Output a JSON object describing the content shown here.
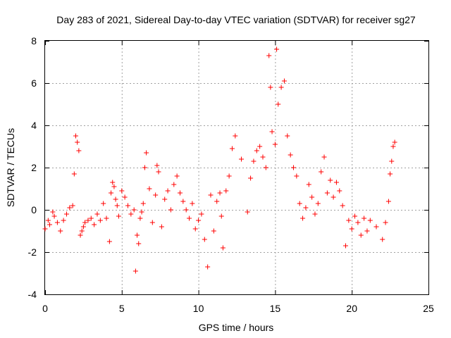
{
  "chart_data": {
    "type": "scatter",
    "title": "Day 283 of 2021, Sidereal Day-to-day VTEC variation (SDTVAR) for receiver sg27",
    "xlabel": "GPS time / hours",
    "ylabel": "SDTVAR / TECUs",
    "xlim": [
      0,
      25
    ],
    "ylim": [
      -4,
      8
    ],
    "xticks": [
      0,
      5,
      10,
      15,
      20,
      25
    ],
    "yticks": [
      -4,
      -2,
      0,
      2,
      4,
      6,
      8
    ],
    "xtick_labels": [
      "0",
      "5",
      "10",
      "15",
      "20",
      "25"
    ],
    "ytick_labels": [
      "-4",
      "-2",
      "0",
      "2",
      "4",
      "6",
      "8"
    ],
    "grid": true,
    "marker": "+",
    "series": [
      {
        "name": "SDTVAR",
        "color": "#ff0000",
        "x": [
          0.0,
          0.2,
          0.3,
          0.5,
          0.6,
          0.8,
          1.0,
          1.2,
          1.4,
          1.6,
          1.8,
          1.9,
          2.0,
          2.1,
          2.2,
          2.3,
          2.4,
          2.5,
          2.6,
          2.8,
          3.0,
          3.2,
          3.4,
          3.6,
          3.8,
          4.0,
          4.2,
          4.3,
          4.4,
          4.5,
          4.6,
          4.7,
          4.8,
          5.0,
          5.2,
          5.4,
          5.6,
          5.8,
          5.9,
          6.0,
          6.1,
          6.2,
          6.3,
          6.4,
          6.5,
          6.6,
          6.8,
          7.0,
          7.2,
          7.3,
          7.4,
          7.6,
          7.8,
          8.0,
          8.2,
          8.4,
          8.6,
          8.8,
          9.0,
          9.2,
          9.4,
          9.6,
          9.8,
          10.0,
          10.2,
          10.4,
          10.6,
          10.8,
          11.0,
          11.2,
          11.4,
          11.5,
          11.6,
          11.8,
          12.0,
          12.2,
          12.4,
          12.8,
          13.2,
          13.4,
          13.6,
          13.8,
          14.0,
          14.2,
          14.4,
          14.6,
          14.7,
          14.8,
          15.0,
          15.1,
          15.2,
          15.4,
          15.6,
          15.8,
          16.0,
          16.2,
          16.4,
          16.6,
          16.8,
          17.0,
          17.2,
          17.4,
          17.6,
          17.8,
          18.0,
          18.2,
          18.4,
          18.6,
          18.8,
          19.0,
          19.2,
          19.4,
          19.6,
          19.8,
          20.0,
          20.2,
          20.4,
          20.6,
          20.8,
          21.0,
          21.2,
          21.6,
          22.0,
          22.2,
          22.4,
          22.5,
          22.6,
          22.7,
          22.8
        ],
        "y": [
          -0.9,
          -0.5,
          -0.7,
          -0.1,
          -0.3,
          -0.6,
          -1.0,
          -0.5,
          -0.2,
          0.1,
          0.2,
          1.7,
          3.5,
          3.2,
          2.8,
          -1.2,
          -1.0,
          -0.8,
          -0.6,
          -0.5,
          -0.4,
          -0.7,
          -0.2,
          -0.5,
          0.3,
          -0.4,
          -1.5,
          0.8,
          1.3,
          1.1,
          0.5,
          0.2,
          -0.3,
          0.9,
          0.6,
          0.2,
          -0.2,
          0.0,
          -2.9,
          -1.2,
          -1.6,
          -0.4,
          -0.1,
          0.3,
          2.0,
          2.7,
          1.0,
          -0.6,
          0.7,
          2.1,
          1.8,
          -0.8,
          0.5,
          0.9,
          0.0,
          1.2,
          1.6,
          0.8,
          0.4,
          0.0,
          -0.4,
          0.3,
          -0.9,
          -0.5,
          -0.2,
          -1.4,
          -2.7,
          0.7,
          -1.0,
          0.4,
          0.8,
          -0.3,
          -1.8,
          0.9,
          1.6,
          2.9,
          3.5,
          2.4,
          -0.1,
          1.5,
          2.3,
          2.8,
          3.0,
          2.5,
          2.0,
          7.3,
          5.8,
          3.7,
          3.1,
          7.6,
          5.0,
          5.8,
          6.1,
          3.5,
          2.6,
          2.0,
          1.6,
          0.3,
          -0.4,
          0.1,
          1.2,
          0.6,
          -0.2,
          0.3,
          1.8,
          2.5,
          0.8,
          1.4,
          0.6,
          1.3,
          0.9,
          0.2,
          -1.7,
          -0.5,
          -0.9,
          -0.3,
          -0.6,
          -1.2,
          -0.4,
          -1.0,
          -0.5,
          -0.8,
          -1.4,
          -0.6,
          0.4,
          1.7,
          2.3,
          3.0,
          3.2
        ]
      }
    ]
  }
}
